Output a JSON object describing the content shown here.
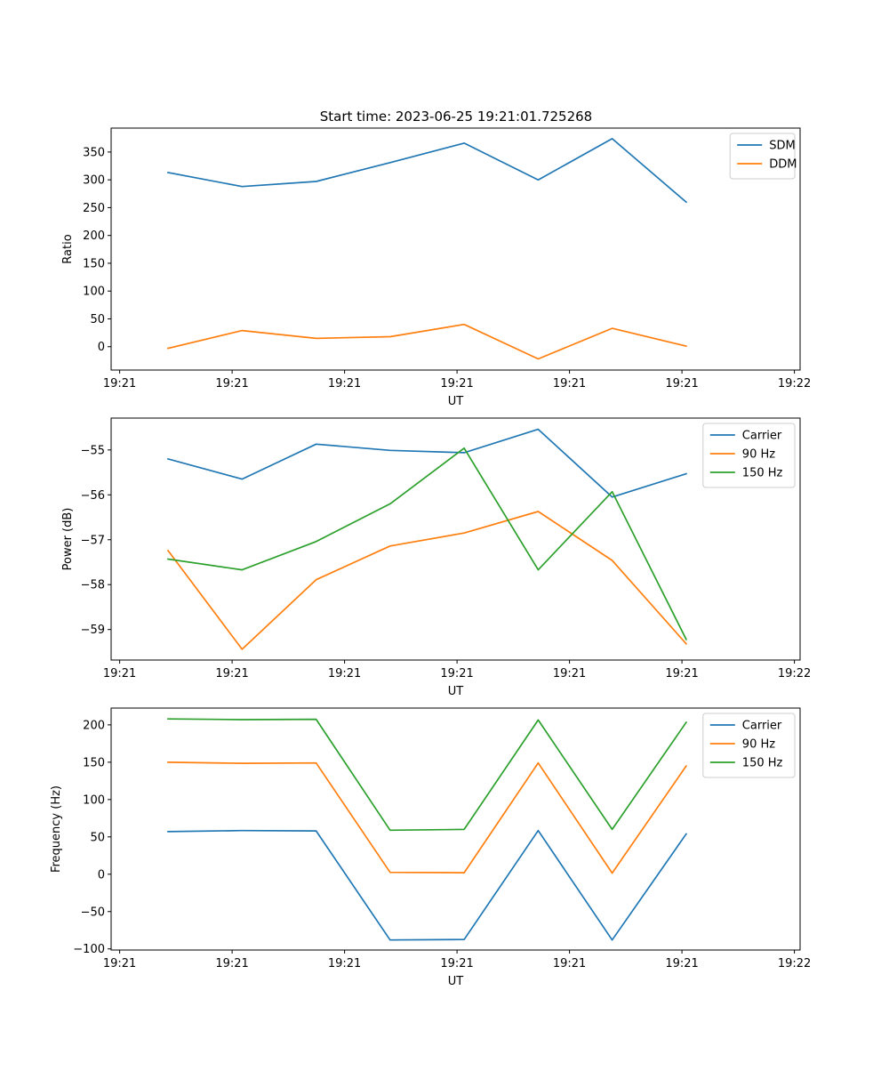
{
  "figure": {
    "title": "Start time: 2023-06-25 19:21:01.725268"
  },
  "chart_data": [
    {
      "type": "line",
      "title": "Start time: 2023-06-25 19:21:01.725268",
      "xlabel": "UT",
      "ylabel": "Ratio",
      "x_tick_labels": [
        "19:21",
        "19:21",
        "19:21",
        "19:21",
        "19:21",
        "19:21",
        "19:22"
      ],
      "y_ticks": [
        0,
        50,
        100,
        150,
        200,
        250,
        300,
        350
      ],
      "ylim": [
        -42,
        393
      ],
      "xlim": [
        0,
        12.1
      ],
      "x": [
        1,
        2.3,
        3.6,
        4.9,
        6.2,
        7.5,
        8.8,
        10.1
      ],
      "legend_position": "upper right",
      "grid": false,
      "series": [
        {
          "name": "SDM",
          "color": "#1f77b4",
          "values": [
            313,
            288,
            297,
            331,
            366,
            300,
            374,
            260
          ]
        },
        {
          "name": "DDM",
          "color": "#ff7f0e",
          "values": [
            -3,
            29,
            15,
            18,
            40,
            -22,
            33,
            1
          ]
        }
      ]
    },
    {
      "type": "line",
      "title": "",
      "xlabel": "UT",
      "ylabel": "Power (dB)",
      "x_tick_labels": [
        "19:21",
        "19:21",
        "19:21",
        "19:21",
        "19:21",
        "19:21",
        "19:22"
      ],
      "y_ticks": [
        -55,
        -56,
        -57,
        -58,
        -59
      ],
      "ylim": [
        -59.68,
        -54.29
      ],
      "xlim": [
        0,
        12.1
      ],
      "x": [
        1,
        2.3,
        3.6,
        4.9,
        6.2,
        7.5,
        8.8,
        10.1
      ],
      "legend_position": "upper right",
      "grid": false,
      "series": [
        {
          "name": "Carrier",
          "color": "#1f77b4",
          "values": [
            -55.2,
            -55.65,
            -54.87,
            -55.01,
            -55.06,
            -54.54,
            -56.05,
            -55.53
          ]
        },
        {
          "name": "90 Hz",
          "color": "#ff7f0e",
          "values": [
            -57.24,
            -59.44,
            -57.89,
            -57.14,
            -56.85,
            -56.37,
            -57.46,
            -59.32
          ]
        },
        {
          "name": "150 Hz",
          "color": "#2ca02c",
          "values": [
            -57.43,
            -57.67,
            -57.04,
            -56.2,
            -54.96,
            -57.67,
            -55.93,
            -59.22
          ]
        }
      ]
    },
    {
      "type": "line",
      "title": "",
      "xlabel": "UT",
      "ylabel": "Frequency (Hz)",
      "x_tick_labels": [
        "19:21",
        "19:21",
        "19:21",
        "19:21",
        "19:21",
        "19:21",
        "19:22"
      ],
      "y_ticks": [
        -100,
        -50,
        0,
        50,
        100,
        150,
        200
      ],
      "ylim": [
        -101.5,
        222.5
      ],
      "xlim": [
        0,
        12.1
      ],
      "x": [
        1,
        2.3,
        3.6,
        4.9,
        6.2,
        7.5,
        8.8,
        10.1
      ],
      "legend_position": "upper right",
      "grid": false,
      "series": [
        {
          "name": "Carrier",
          "color": "#1f77b4",
          "values": [
            57,
            58.5,
            58,
            -88,
            -87.5,
            58.5,
            -88,
            54
          ]
        },
        {
          "name": "90 Hz",
          "color": "#ff7f0e",
          "values": [
            150,
            148.5,
            149,
            2.5,
            2,
            149,
            1.5,
            145
          ]
        },
        {
          "name": "150 Hz",
          "color": "#2ca02c",
          "values": [
            208,
            207,
            207.5,
            59,
            60,
            206.5,
            60,
            203.5
          ]
        }
      ]
    }
  ]
}
